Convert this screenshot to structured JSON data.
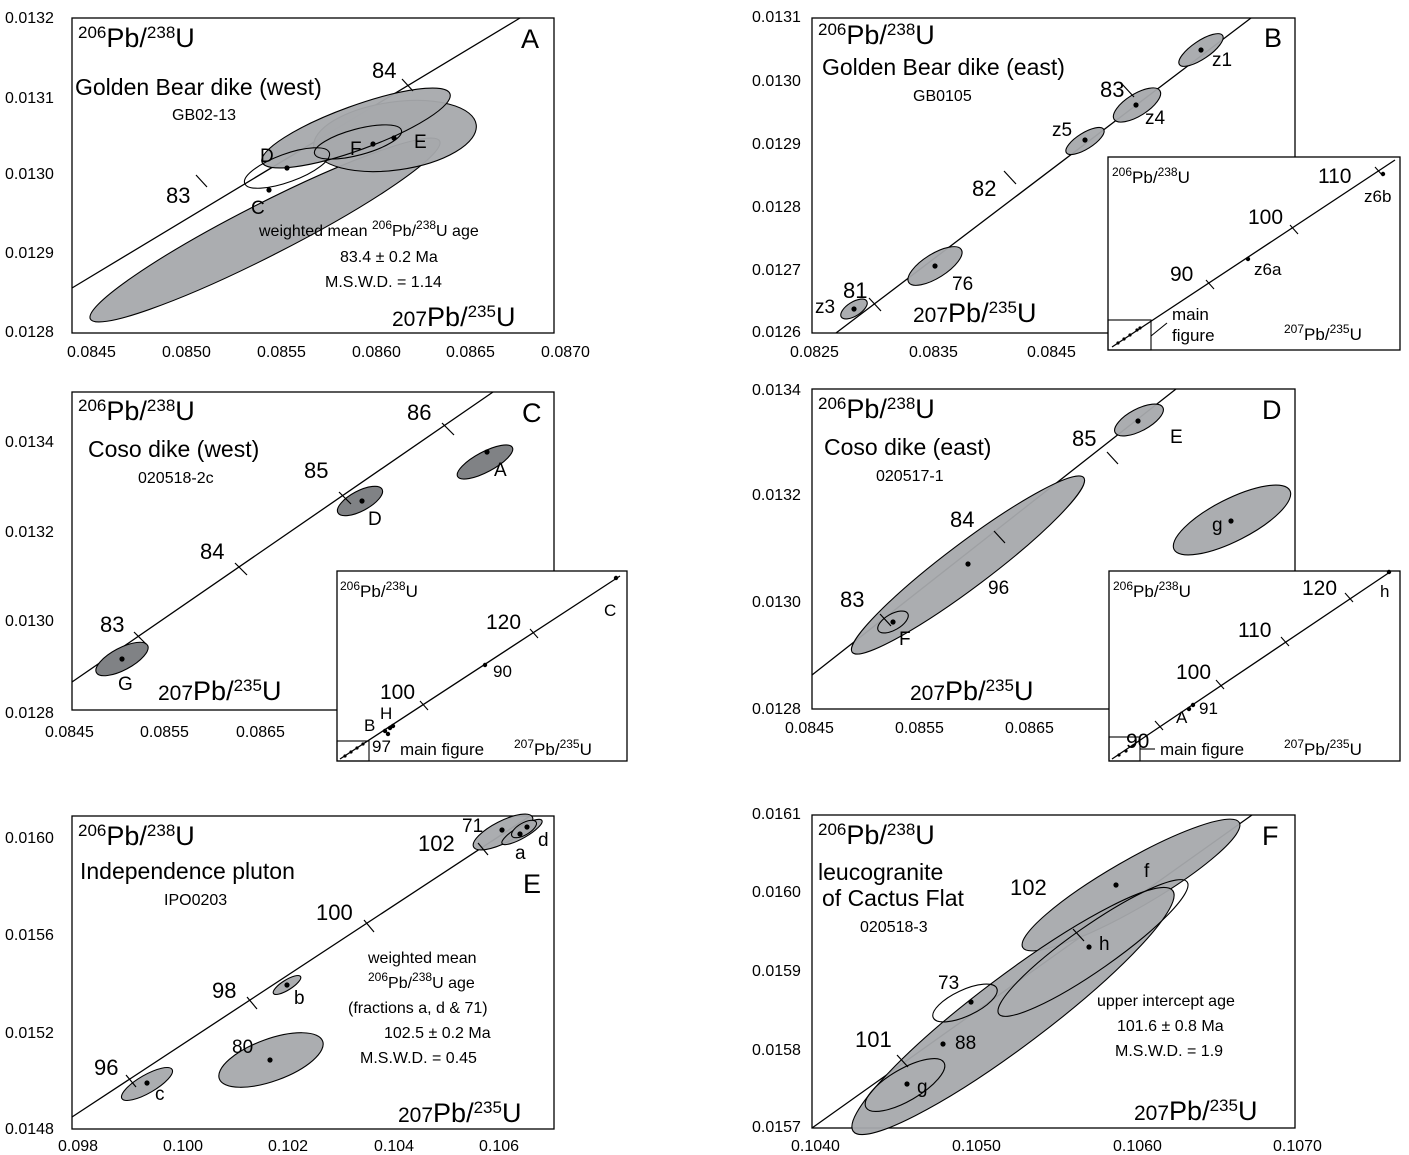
{
  "chart_data": [
    {
      "id": "A",
      "type": "scatter",
      "panel_letter": "A",
      "y_axis_label": {
        "pre": "206",
        "mid": "Pb/",
        "sup": "238",
        "post": "U"
      },
      "x_axis_label": {
        "pre": "207",
        "mid": "Pb/",
        "sup": "235",
        "post": "U"
      },
      "title": "Golden Bear dike (west)",
      "sample": "GB02-13",
      "xlim": [
        0.0845,
        0.087
      ],
      "ylim": [
        0.0128,
        0.0132
      ],
      "x_ticks": [
        "0.0845",
        "0.0850",
        "0.0855",
        "0.0860",
        "0.0865",
        "0.0870"
      ],
      "y_ticks": [
        "0.0128",
        "0.0129",
        "0.0130",
        "0.0131",
        "0.0132"
      ],
      "annotation": [
        "weighted mean ",
        "206",
        "Pb/",
        "238",
        "U age",
        "83.4 ± 0.2 Ma",
        "M.S.W.D. = 1.14"
      ],
      "age_ticks": [
        {
          "label": "83",
          "age": 83
        },
        {
          "label": "84",
          "age": 84
        }
      ],
      "fractions": [
        {
          "label": "D",
          "x": 0.08558,
          "y": 0.013009
        },
        {
          "label": "C",
          "x": 0.08549,
          "y": 0.012982
        },
        {
          "label": "F",
          "x": 0.08603,
          "y": 0.013036
        },
        {
          "label": "E",
          "x": 0.08613,
          "y": 0.013046
        }
      ]
    },
    {
      "id": "B",
      "type": "scatter",
      "panel_letter": "B",
      "title": "Golden Bear dike (east)",
      "sample": "GB0105",
      "xlim": [
        0.0825,
        0.0865
      ],
      "ylim": [
        0.0126,
        0.0131
      ],
      "x_ticks": [
        "0.0825",
        "0.0835",
        "0.0845"
      ],
      "y_ticks": [
        "0.0126",
        "0.0127",
        "0.0128",
        "0.0129",
        "0.0130",
        "0.0131"
      ],
      "age_ticks": [
        {
          "label": "81",
          "age": 81
        },
        {
          "label": "82",
          "age": 82
        },
        {
          "label": "83",
          "age": 83
        }
      ],
      "fractions": [
        {
          "label": "z1",
          "x": 0.08592,
          "y": 0.013045
        },
        {
          "label": "z4",
          "x": 0.08549,
          "y": 0.012958
        },
        {
          "label": "z5",
          "x": 0.08512,
          "y": 0.012905
        },
        {
          "label": "76",
          "x": 0.08357,
          "y": 0.012706
        },
        {
          "label": "z3",
          "x": 0.08275,
          "y": 0.012637
        }
      ],
      "inset": {
        "age_ticks": [
          "90",
          "100",
          "110"
        ],
        "fractions": [
          "z6a",
          "z6b"
        ],
        "note": [
          "main",
          "figure"
        ]
      }
    },
    {
      "id": "C",
      "type": "scatter",
      "panel_letter": "C",
      "title": "Coso dike (west)",
      "sample": "020518-2c",
      "xlim": [
        0.0845,
        0.0885
      ],
      "ylim": [
        0.0128,
        0.0135
      ],
      "x_ticks": [
        "0.0845",
        "0.0855",
        "0.0865"
      ],
      "y_ticks": [
        "0.0128",
        "0.0130",
        "0.0132",
        "0.0134"
      ],
      "age_ticks": [
        {
          "label": "83",
          "age": 83
        },
        {
          "label": "84",
          "age": 84
        },
        {
          "label": "85",
          "age": 85
        },
        {
          "label": "86",
          "age": 86
        }
      ],
      "fractions": [
        {
          "label": "A",
          "x": 0.08787,
          "y": 0.013371
        },
        {
          "label": "D",
          "x": 0.08653,
          "y": 0.013259
        },
        {
          "label": "G",
          "x": 0.08505,
          "y": 0.012908
        }
      ],
      "inset": {
        "age_ticks": [
          "100",
          "120"
        ],
        "fractions": [
          "C",
          "90",
          "H",
          "B",
          "97"
        ],
        "note": [
          "main figure"
        ]
      }
    },
    {
      "id": "D",
      "type": "scatter",
      "panel_letter": "D",
      "title": "Coso dike (east)",
      "sample": "020517-1",
      "xlim": [
        0.0845,
        0.0885
      ],
      "ylim": [
        0.0128,
        0.0134
      ],
      "x_ticks": [
        "0.0845",
        "0.0855",
        "0.0865"
      ],
      "y_ticks": [
        "0.0128",
        "0.0130",
        "0.0132",
        "0.0134"
      ],
      "age_ticks": [
        {
          "label": "83",
          "age": 83
        },
        {
          "label": "84",
          "age": 84
        },
        {
          "label": "85",
          "age": 85
        }
      ],
      "fractions": [
        {
          "label": "E",
          "x": 0.08744,
          "y": 0.013343
        },
        {
          "label": "96",
          "x": 0.08598,
          "y": 0.013069
        },
        {
          "label": "F",
          "x": 0.08533,
          "y": 0.012962
        },
        {
          "label": "g",
          "x": 0.08809,
          "y": 0.013147
        }
      ],
      "inset": {
        "age_ticks": [
          "90",
          "100",
          "110",
          "120"
        ],
        "fractions": [
          "h",
          "A",
          "91"
        ],
        "note": [
          "main figure"
        ]
      }
    },
    {
      "id": "E",
      "type": "scatter",
      "panel_letter": "E",
      "title": "Independence pluton",
      "sample": "IPO0203",
      "xlim": [
        0.098,
        0.107
      ],
      "ylim": [
        0.0148,
        0.0161
      ],
      "x_ticks": [
        "0.098",
        "0.100",
        "0.102",
        "0.104",
        "0.106"
      ],
      "y_ticks": [
        "0.0148",
        "0.0152",
        "0.0156",
        "0.0160"
      ],
      "annotation": [
        "weighted mean",
        "206",
        "Pb/",
        "238",
        "U age",
        "(fractions a, d & 71)",
        "102.5 ± 0.2 Ma",
        "M.S.W.D. = 0.45"
      ],
      "age_ticks": [
        {
          "label": "96",
          "age": 96
        },
        {
          "label": "98",
          "age": 98
        },
        {
          "label": "100",
          "age": 100
        },
        {
          "label": "102",
          "age": 102
        }
      ],
      "fractions": [
        {
          "label": "71",
          "x": 0.106,
          "y": 0.016026
        },
        {
          "label": "a",
          "x": 0.10629,
          "y": 0.01601
        },
        {
          "label": "d",
          "x": 0.1064,
          "y": 0.016048
        },
        {
          "label": "b",
          "x": 0.102,
          "y": 0.015394
        },
        {
          "label": "80",
          "x": 0.10169,
          "y": 0.015083
        },
        {
          "label": "c",
          "x": 0.09935,
          "y": 0.014989
        }
      ]
    },
    {
      "id": "F",
      "type": "scatter",
      "panel_letter": "F",
      "title": "leucogranite of Cactus Flat",
      "sample": "020518-3",
      "xlim": [
        0.104,
        0.107
      ],
      "ylim": [
        0.0157,
        0.0161
      ],
      "x_ticks": [
        "0.1040",
        "0.1050",
        "0.1060",
        "0.1070"
      ],
      "y_ticks": [
        "0.0157",
        "0.0158",
        "0.0159",
        "0.0160",
        "0.0161"
      ],
      "annotation": [
        "upper intercept age",
        "101.6 ± 0.8 Ma",
        "M.S.W.D. = 1.9"
      ],
      "age_ticks": [
        {
          "label": "101",
          "age": 101
        },
        {
          "label": "102",
          "age": 102
        }
      ],
      "fractions": [
        {
          "label": "f",
          "x": 0.10586,
          "y": 0.016009
        },
        {
          "label": "h",
          "x": 0.10568,
          "y": 0.015929
        },
        {
          "label": "73",
          "x": 0.10498,
          "y": 0.01586
        },
        {
          "label": "88",
          "x": 0.10478,
          "y": 0.015806
        },
        {
          "label": "g",
          "x": 0.10456,
          "y": 0.015755
        }
      ]
    }
  ]
}
